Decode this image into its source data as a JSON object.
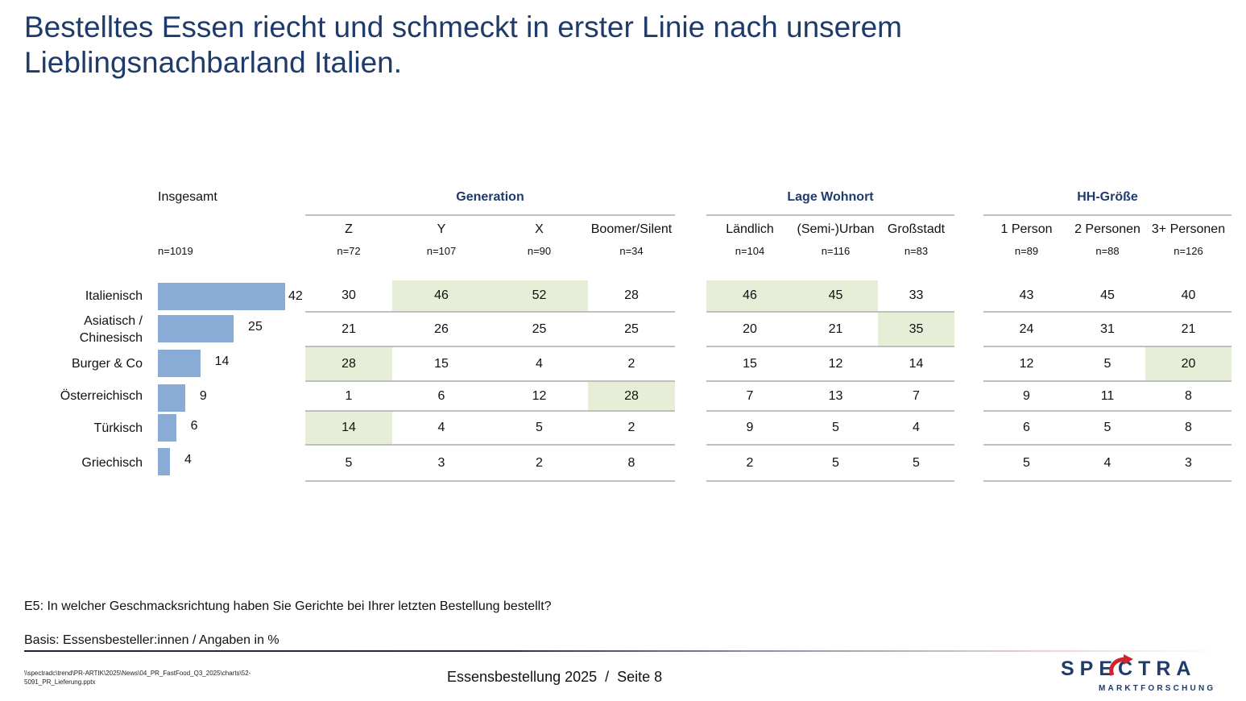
{
  "title": "Bestelltes Essen riecht und schmeckt in erster Linie nach unserem Lieblingsnachbarland Italien.",
  "chart_data": {
    "type": "table",
    "title": "Bestelltes Essen riecht und schmeckt in erster Linie nach unserem Lieblingsnachbarland Italien.",
    "total": {
      "label": "Insgesamt",
      "n": "n=1019",
      "type": "bar",
      "xlim": [
        0,
        42
      ]
    },
    "categories": [
      "Italienisch",
      "Asiatisch / Chinesisch",
      "Burger & Co",
      "Österreichisch",
      "Türkisch",
      "Griechisch"
    ],
    "total_values": [
      42,
      25,
      14,
      9,
      6,
      4
    ],
    "groups": [
      {
        "label": "Generation",
        "columns": [
          {
            "label": "Z",
            "n": "n=72",
            "values": [
              30,
              21,
              28,
              1,
              14,
              5
            ],
            "highlight": [
              false,
              false,
              true,
              false,
              true,
              false
            ]
          },
          {
            "label": "Y",
            "n": "n=107",
            "values": [
              46,
              26,
              15,
              6,
              4,
              3
            ],
            "highlight": [
              true,
              false,
              false,
              false,
              false,
              false
            ]
          },
          {
            "label": "X",
            "n": "n=90",
            "values": [
              52,
              25,
              4,
              12,
              5,
              2
            ],
            "highlight": [
              true,
              false,
              false,
              false,
              false,
              false
            ]
          },
          {
            "label": "Boomer/Silent",
            "n": "n=34",
            "values": [
              28,
              25,
              2,
              28,
              2,
              8
            ],
            "highlight": [
              false,
              false,
              false,
              true,
              false,
              false
            ]
          }
        ]
      },
      {
        "label": "Lage Wohnort",
        "columns": [
          {
            "label": "Ländlich",
            "n": "n=104",
            "values": [
              46,
              20,
              15,
              7,
              9,
              2
            ],
            "highlight": [
              true,
              false,
              false,
              false,
              false,
              false
            ]
          },
          {
            "label": "(Semi-)Urban",
            "n": "n=116",
            "values": [
              45,
              21,
              12,
              13,
              5,
              5
            ],
            "highlight": [
              true,
              false,
              false,
              false,
              false,
              false
            ]
          },
          {
            "label": "Großstadt",
            "n": "n=83",
            "values": [
              33,
              35,
              14,
              7,
              4,
              5
            ],
            "highlight": [
              false,
              true,
              false,
              false,
              false,
              false
            ]
          }
        ]
      },
      {
        "label": "HH-Größe",
        "columns": [
          {
            "label": "1 Person",
            "n": "n=89",
            "values": [
              43,
              24,
              12,
              9,
              6,
              5
            ],
            "highlight": [
              false,
              false,
              false,
              false,
              false,
              false
            ]
          },
          {
            "label": "2 Personen",
            "n": "n=88",
            "values": [
              45,
              31,
              5,
              11,
              5,
              4
            ],
            "highlight": [
              false,
              false,
              false,
              false,
              false,
              false
            ]
          },
          {
            "label": "3+ Personen",
            "n": "n=126",
            "values": [
              40,
              21,
              20,
              8,
              8,
              3
            ],
            "highlight": [
              false,
              false,
              true,
              false,
              false,
              false
            ]
          }
        ]
      }
    ],
    "colors": {
      "bar": "#89acd6",
      "highlight": "#e6eed8",
      "accent": "#1f3b6b"
    }
  },
  "question": "E5: In welcher Geschmacksrichtung haben Sie Gerichte bei Ihrer letzten Bestellung bestellt?",
  "basis": "Basis: Essensbesteller:innen / Angaben in %",
  "footer": {
    "filepath": "\\\\spectradc\\trend\\PR-ARTIK\\2025\\News\\04_PR_FastFood_Q3_2025\\charts\\52-5091_PR_Lieferung.pptx",
    "page": "Essensbestellung 2025  /  Seite 8"
  },
  "logo": {
    "word": "SPECTRA",
    "sub": "MARKTFORSCHUNG"
  }
}
